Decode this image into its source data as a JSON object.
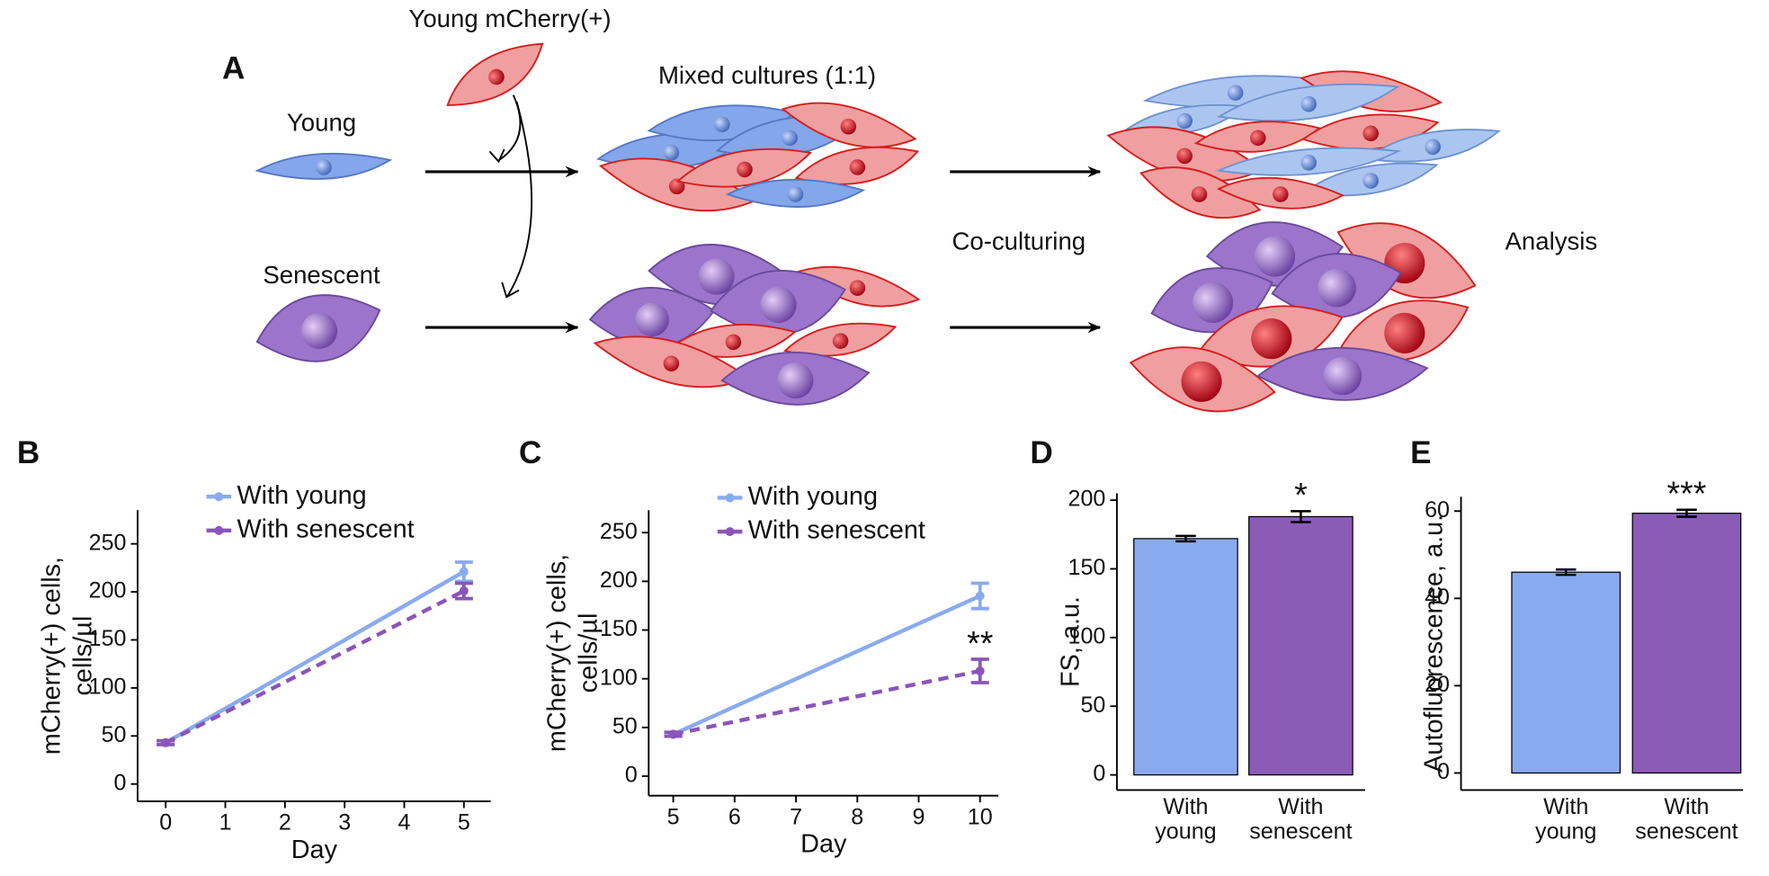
{
  "panel_a": {
    "label": "A",
    "donor": "Young mCherry(+)",
    "young": "Young",
    "senescent": "Senescent",
    "mixed": "Mixed cultures (1:1)",
    "coculture": "Co-culturing",
    "analysis": "Analysis"
  },
  "chart_data": [
    {
      "panel": "B",
      "type": "line",
      "x": [
        0,
        5
      ],
      "xlim": [
        -0.47,
        5.45
      ],
      "xticks": [
        0,
        1,
        2,
        3,
        4,
        5
      ],
      "ylim": [
        -18,
        285
      ],
      "yticks": [
        0,
        50,
        100,
        150,
        200,
        250
      ],
      "xlabel": "Day",
      "ylabel": [
        "mCherry(+) cells,",
        "cells/µl"
      ],
      "series": [
        {
          "name": "With young",
          "color": "#8aaaf0",
          "line_style": "solid",
          "values": [
            43,
            221
          ],
          "errors": [
            2,
            10
          ]
        },
        {
          "name": "With senescent",
          "color": "#8b55b8",
          "line_style": "dashed",
          "values": [
            43,
            201
          ],
          "errors": [
            2,
            8
          ]
        }
      ]
    },
    {
      "panel": "C",
      "type": "line",
      "x": [
        5,
        10
      ],
      "xlim": [
        4.6,
        10.3
      ],
      "xticks": [
        5,
        6,
        7,
        8,
        9,
        10
      ],
      "ylim": [
        -20,
        273
      ],
      "yticks": [
        0,
        50,
        100,
        150,
        200,
        250
      ],
      "xlabel": "Day",
      "ylabel": [
        "mCherry(+) cells,",
        "cells/µl"
      ],
      "annotation": "**",
      "series": [
        {
          "name": "With young",
          "color": "#8aaaf0",
          "line_style": "solid",
          "values": [
            43,
            185
          ],
          "errors": [
            2,
            13
          ]
        },
        {
          "name": "With senescent",
          "color": "#8b55b8",
          "line_style": "dashed",
          "values": [
            43,
            108
          ],
          "errors": [
            2,
            12
          ]
        }
      ]
    },
    {
      "panel": "D",
      "type": "bar",
      "categories": [
        [
          "With",
          "young"
        ],
        [
          "With",
          "senescent"
        ]
      ],
      "values": [
        172,
        188
      ],
      "errors": [
        2,
        4
      ],
      "colors": [
        "#8aaaf0",
        "#8b5bb8"
      ],
      "ylim": [
        -11,
        205
      ],
      "yticks": [
        0,
        50,
        100,
        150,
        200
      ],
      "ylabel": [
        "FS, a.u."
      ],
      "annotation": "*"
    },
    {
      "panel": "E",
      "type": "bar",
      "categories": [
        [
          "With",
          "young"
        ],
        [
          "With",
          "senescent"
        ]
      ],
      "values": [
        46,
        59.5
      ],
      "errors": [
        0.6,
        0.8
      ],
      "colors": [
        "#8aaaf0",
        "#8b5bb8"
      ],
      "ylim": [
        -3.9,
        63.3
      ],
      "yticks": [
        0,
        20,
        40,
        60
      ],
      "ylabel": [
        "Autofluorescence, a.u."
      ],
      "annotation": "***"
    }
  ]
}
